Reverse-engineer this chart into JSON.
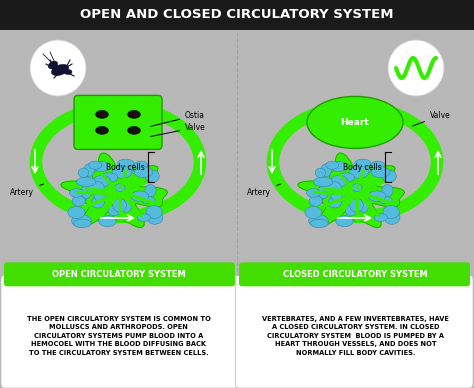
{
  "title": "OPEN AND CLOSED CIRCULATORY SYSTEM",
  "title_bg": "#1a1a1a",
  "title_color": "#ffffff",
  "bg_color": "#b8b8b8",
  "left_label": "OPEN CIRCULATORY SYSTEM",
  "right_label": "CLOSED CIRCULATORY SYSTEM",
  "label_bg": "#44dd00",
  "green_main": "#33ee00",
  "green_dark": "#229900",
  "green_loop": "#22dd00",
  "blue_cell": "#55bbdd",
  "blue_dark": "#3388aa",
  "white": "#ffffff",
  "black": "#000000",
  "left_text": "THE OPEN CIRCULATORY SYSTEM IS COMMON TO\nMOLLUSCS AND ARTHROPODS. OPEN\nCIRCULATORY SYSTEMS PUMP BLOOD INTO A\nHEMOCOEL WITH THE BLOOD DIFFUSING BACK\nTO THE CIRCULATORY SYSTEM BETWEEN CELLS.",
  "right_text": "VERTEBRATES, AND A FEW INVERTEBRATES, HAVE\nA CLOSED CIRCULATORY SYSTEM. IN CLOSED\nCIRCULATORY SYSTEM  BLOOD IS PUMPED BY A\nHEART THROUGH VESSELS, AND DOES NOT\nNORMALLY FILL BODY CAVITIES."
}
